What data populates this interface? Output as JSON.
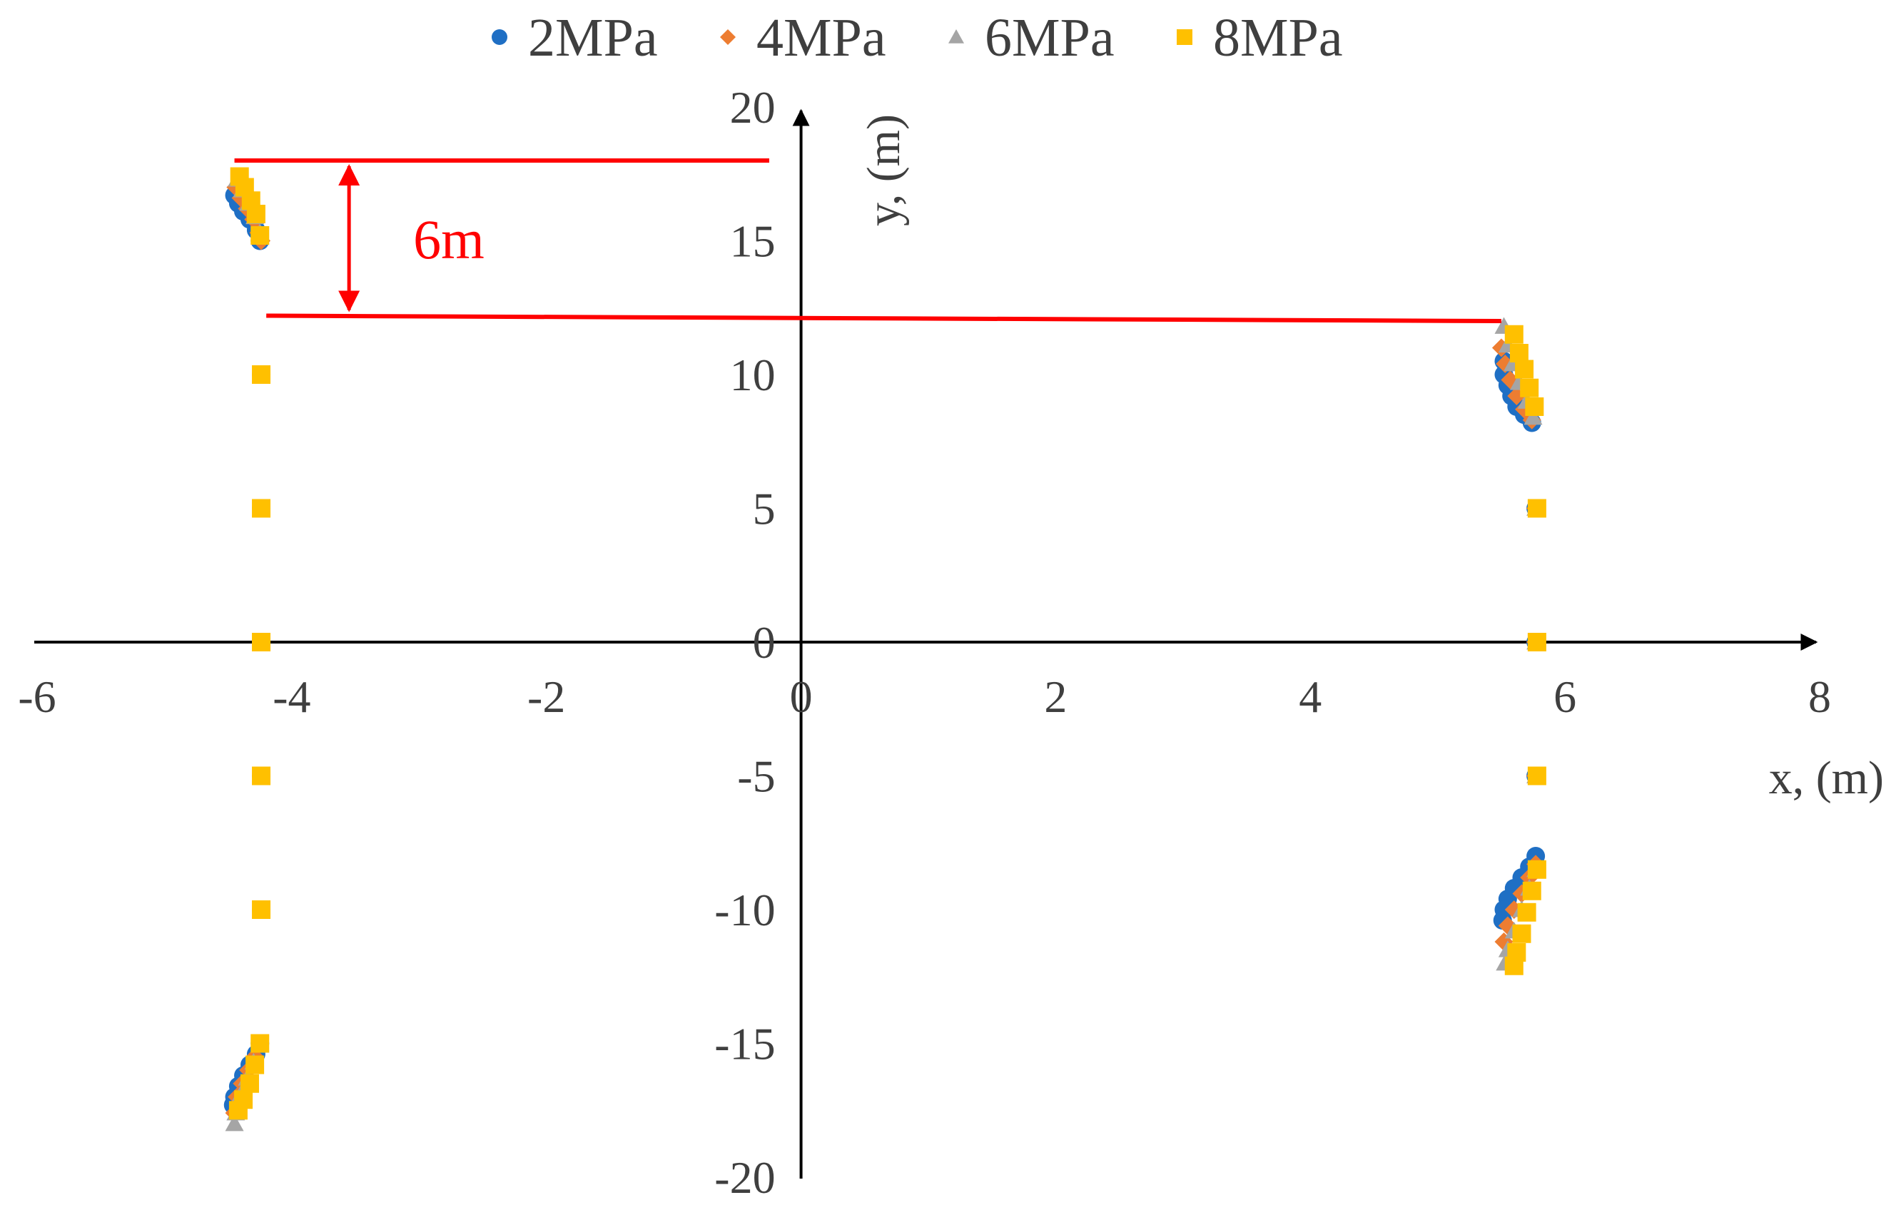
{
  "chart_data": {
    "type": "scatter",
    "title": "",
    "xlabel": "x, (m)",
    "ylabel": "y, (m)",
    "xlim": [
      -6,
      8
    ],
    "ylim": [
      -20,
      20
    ],
    "x_ticks": [
      -6,
      -4,
      -2,
      0,
      2,
      4,
      6,
      8
    ],
    "y_ticks": [
      -20,
      -15,
      -10,
      -5,
      0,
      5,
      10,
      15,
      20
    ],
    "x_tick_labels": [
      "-6",
      "-4",
      "-2",
      "0",
      "2",
      "4",
      "6",
      "8"
    ],
    "y_tick_labels": [
      "-20",
      "-15",
      "-10",
      "-5",
      "0",
      "5",
      "10",
      "15",
      "20"
    ],
    "grid": false,
    "legend_position": "top",
    "series": [
      {
        "name": "2MPa",
        "marker": "circle",
        "color": "#1f6fc4",
        "points": [
          [
            -4.45,
            16.7
          ],
          [
            -4.42,
            16.4
          ],
          [
            -4.38,
            16.1
          ],
          [
            -4.33,
            15.8
          ],
          [
            -4.28,
            15.4
          ],
          [
            -4.25,
            15.0
          ],
          [
            -4.24,
            10.0
          ],
          [
            -4.24,
            5.0
          ],
          [
            -4.24,
            0.0
          ],
          [
            -4.24,
            -5.0
          ],
          [
            -4.24,
            -10.0
          ],
          [
            -4.25,
            -15.0
          ],
          [
            -4.28,
            -15.4
          ],
          [
            -4.33,
            -15.8
          ],
          [
            -4.38,
            -16.2
          ],
          [
            -4.42,
            -16.6
          ],
          [
            -4.45,
            -17.0
          ],
          [
            -4.46,
            -17.3
          ],
          [
            5.52,
            10.5
          ],
          [
            5.52,
            10.0
          ],
          [
            5.55,
            9.6
          ],
          [
            5.58,
            9.2
          ],
          [
            5.62,
            8.8
          ],
          [
            5.68,
            8.5
          ],
          [
            5.74,
            8.2
          ],
          [
            5.77,
            5.0
          ],
          [
            5.77,
            0.0
          ],
          [
            5.77,
            -5.0
          ],
          [
            5.77,
            -8.0
          ],
          [
            5.72,
            -8.4
          ],
          [
            5.66,
            -8.8
          ],
          [
            5.6,
            -9.2
          ],
          [
            5.55,
            -9.6
          ],
          [
            5.52,
            -10.0
          ],
          [
            5.51,
            -10.4
          ]
        ]
      },
      {
        "name": "4MPa",
        "marker": "diamond",
        "color": "#ed7d31",
        "points": [
          [
            -4.44,
            17.0
          ],
          [
            -4.4,
            16.6
          ],
          [
            -4.35,
            16.2
          ],
          [
            -4.3,
            15.8
          ],
          [
            -4.26,
            15.3
          ],
          [
            -4.24,
            15.0
          ],
          [
            -4.24,
            10.0
          ],
          [
            -4.24,
            5.0
          ],
          [
            -4.24,
            0.0
          ],
          [
            -4.24,
            -5.0
          ],
          [
            -4.24,
            -10.0
          ],
          [
            -4.25,
            -15.0
          ],
          [
            -4.29,
            -15.5
          ],
          [
            -4.34,
            -16.0
          ],
          [
            -4.39,
            -16.5
          ],
          [
            -4.43,
            -17.0
          ],
          [
            -4.45,
            -17.6
          ],
          [
            5.5,
            11.0
          ],
          [
            5.53,
            10.4
          ],
          [
            5.57,
            9.8
          ],
          [
            5.62,
            9.2
          ],
          [
            5.68,
            8.7
          ],
          [
            5.74,
            8.3
          ],
          [
            5.77,
            5.0
          ],
          [
            5.77,
            0.0
          ],
          [
            5.77,
            -5.0
          ],
          [
            5.77,
            -8.3
          ],
          [
            5.72,
            -8.8
          ],
          [
            5.66,
            -9.4
          ],
          [
            5.6,
            -10.0
          ],
          [
            5.55,
            -10.6
          ],
          [
            5.52,
            -11.2
          ]
        ]
      },
      {
        "name": "6MPa",
        "marker": "triangle",
        "color": "#a5a5a5",
        "points": [
          [
            -4.43,
            17.3
          ],
          [
            -4.39,
            16.9
          ],
          [
            -4.34,
            16.4
          ],
          [
            -4.29,
            15.9
          ],
          [
            -4.25,
            15.3
          ],
          [
            -4.24,
            10.0
          ],
          [
            -4.24,
            5.0
          ],
          [
            -4.24,
            0.0
          ],
          [
            -4.24,
            -5.0
          ],
          [
            -4.24,
            -10.0
          ],
          [
            -4.25,
            -15.0
          ],
          [
            -4.3,
            -15.7
          ],
          [
            -4.35,
            -16.3
          ],
          [
            -4.4,
            -16.9
          ],
          [
            -4.44,
            -17.6
          ],
          [
            -4.45,
            -18.0
          ],
          [
            5.52,
            11.8
          ],
          [
            5.55,
            11.1
          ],
          [
            5.59,
            10.4
          ],
          [
            5.64,
            9.7
          ],
          [
            5.7,
            9.0
          ],
          [
            5.75,
            8.4
          ],
          [
            5.77,
            5.0
          ],
          [
            5.77,
            0.0
          ],
          [
            5.77,
            -5.0
          ],
          [
            5.77,
            -8.5
          ],
          [
            5.72,
            -9.2
          ],
          [
            5.66,
            -10.0
          ],
          [
            5.6,
            -10.8
          ],
          [
            5.55,
            -11.5
          ],
          [
            5.53,
            -12.0
          ]
        ]
      },
      {
        "name": "8MPa",
        "marker": "square",
        "color": "#ffc000",
        "points": [
          [
            -4.41,
            17.4
          ],
          [
            -4.37,
            17.0
          ],
          [
            -4.32,
            16.5
          ],
          [
            -4.28,
            16.0
          ],
          [
            -4.25,
            15.2
          ],
          [
            -4.24,
            10.0
          ],
          [
            -4.24,
            5.0
          ],
          [
            -4.24,
            0.0
          ],
          [
            -4.24,
            -5.0
          ],
          [
            -4.24,
            -10.0
          ],
          [
            -4.25,
            -15.0
          ],
          [
            -4.29,
            -15.8
          ],
          [
            -4.33,
            -16.5
          ],
          [
            -4.38,
            -17.1
          ],
          [
            -4.42,
            -17.5
          ],
          [
            5.6,
            11.5
          ],
          [
            5.64,
            10.8
          ],
          [
            5.68,
            10.2
          ],
          [
            5.72,
            9.5
          ],
          [
            5.76,
            8.8
          ],
          [
            5.78,
            5.0
          ],
          [
            5.78,
            0.0
          ],
          [
            5.78,
            -5.0
          ],
          [
            5.78,
            -8.5
          ],
          [
            5.74,
            -9.3
          ],
          [
            5.7,
            -10.1
          ],
          [
            5.66,
            -10.9
          ],
          [
            5.62,
            -11.6
          ],
          [
            5.6,
            -12.1
          ]
        ]
      }
    ],
    "annotations": [
      {
        "type": "dimension",
        "label": "6m",
        "color": "#ff0000",
        "upper_line": {
          "from": [
            -4.45,
            18.0
          ],
          "to": [
            -0.25,
            18.0
          ]
        },
        "lower_line": {
          "from": [
            -4.2,
            12.2
          ],
          "to": [
            5.5,
            12.0
          ]
        },
        "arrow_x": -3.55,
        "arrow_from_y": 18.0,
        "arrow_to_y": 12.2
      }
    ]
  }
}
